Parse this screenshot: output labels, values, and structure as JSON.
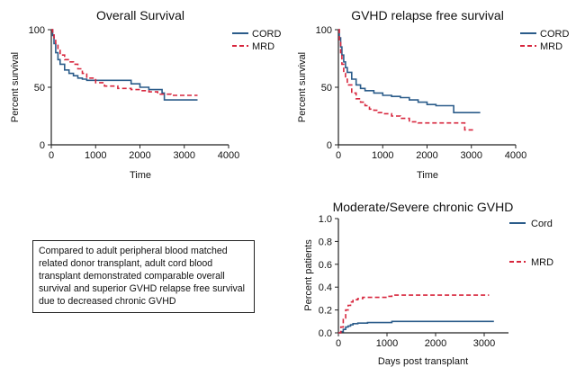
{
  "colors": {
    "blue": "#2b5c8a",
    "red": "#d7263d",
    "axis": "#222222"
  },
  "summary_text": "Compared to adult peripheral blood matched related donor transplant, adult cord blood transplant demonstrated comparable overall survival and superior GVHD relapse free survival due to decreased chronic GVHD",
  "chart_data": [
    {
      "type": "line",
      "title": "Overall Survival",
      "xlabel": "Time",
      "ylabel": "Percent survival",
      "xlim": [
        0,
        4000
      ],
      "ylim": [
        0,
        100
      ],
      "xticks": [
        0,
        1000,
        2000,
        3000,
        4000
      ],
      "yticks": [
        0,
        50,
        100
      ],
      "legend_position": "top-right",
      "series": [
        {
          "name": "CORD",
          "style": "solid",
          "color": "#2b5c8a",
          "x": [
            0,
            30,
            60,
            100,
            150,
            200,
            300,
            400,
            500,
            600,
            700,
            800,
            900,
            1000,
            1200,
            1500,
            1800,
            2000,
            2200,
            2500,
            2550,
            3000,
            3300
          ],
          "y": [
            100,
            95,
            88,
            80,
            74,
            70,
            65,
            62,
            60,
            58,
            57,
            56,
            56,
            56,
            56,
            56,
            53,
            50,
            48,
            45,
            39,
            39,
            39
          ]
        },
        {
          "name": "MRD",
          "style": "dashed",
          "color": "#d7263d",
          "x": [
            0,
            30,
            60,
            100,
            150,
            200,
            300,
            400,
            500,
            600,
            700,
            800,
            1000,
            1200,
            1500,
            1800,
            2000,
            2200,
            2400,
            2700,
            3000,
            3300
          ],
          "y": [
            100,
            97,
            93,
            87,
            82,
            78,
            74,
            72,
            70,
            66,
            62,
            58,
            54,
            51,
            49,
            48,
            47,
            46,
            44,
            43,
            43,
            43
          ]
        }
      ]
    },
    {
      "type": "line",
      "title": "GVHD relapse free survival",
      "xlabel": "Time",
      "ylabel": "Percent survival",
      "xlim": [
        0,
        4000
      ],
      "ylim": [
        0,
        100
      ],
      "xticks": [
        0,
        1000,
        2000,
        3000,
        4000
      ],
      "yticks": [
        0,
        50,
        100
      ],
      "legend_position": "top-right",
      "series": [
        {
          "name": "CORD",
          "style": "solid",
          "color": "#2b5c8a",
          "x": [
            0,
            20,
            50,
            80,
            120,
            160,
            200,
            300,
            400,
            500,
            600,
            800,
            1000,
            1200,
            1400,
            1600,
            1800,
            2000,
            2200,
            2500,
            2600,
            3000,
            3200
          ],
          "y": [
            100,
            93,
            85,
            78,
            72,
            67,
            63,
            57,
            52,
            49,
            47,
            45,
            43,
            42,
            41,
            39,
            37,
            35,
            34,
            34,
            28,
            28,
            28
          ]
        },
        {
          "name": "MRD",
          "style": "dashed",
          "color": "#d7263d",
          "x": [
            0,
            20,
            50,
            80,
            120,
            160,
            200,
            300,
            400,
            500,
            600,
            700,
            800,
            900,
            1000,
            1200,
            1400,
            1600,
            1800,
            2000,
            2400,
            2800,
            2850,
            3050
          ],
          "y": [
            100,
            90,
            80,
            70,
            62,
            57,
            52,
            45,
            40,
            37,
            34,
            31,
            30,
            28,
            27,
            25,
            23,
            20,
            19,
            19,
            19,
            19,
            13,
            13
          ]
        }
      ]
    },
    {
      "type": "line",
      "title": "Moderate/Severe chronic GVHD",
      "xlabel": "Days post transplant",
      "ylabel": "Percent patients",
      "xlim": [
        0,
        3500
      ],
      "ylim": [
        0,
        1.0
      ],
      "xticks": [
        0,
        1000,
        2000,
        3000
      ],
      "yticks": [
        0.0,
        0.2,
        0.4,
        0.6,
        0.8,
        1.0
      ],
      "legend_position": "top-right",
      "series": [
        {
          "name": "Cord",
          "style": "solid",
          "color": "#2b5c8a",
          "x": [
            0,
            50,
            100,
            150,
            200,
            250,
            300,
            400,
            600,
            800,
            1000,
            1100,
            2000,
            3000,
            3200
          ],
          "y": [
            0,
            0.01,
            0.03,
            0.05,
            0.06,
            0.07,
            0.08,
            0.085,
            0.09,
            0.09,
            0.09,
            0.1,
            0.1,
            0.1,
            0.1
          ]
        },
        {
          "name": "MRD",
          "style": "dashed",
          "color": "#d7263d",
          "x": [
            0,
            50,
            100,
            150,
            200,
            250,
            300,
            400,
            500,
            600,
            800,
            1000,
            1100,
            2000,
            3000,
            3100
          ],
          "y": [
            0,
            0.05,
            0.13,
            0.2,
            0.24,
            0.27,
            0.29,
            0.3,
            0.31,
            0.31,
            0.31,
            0.32,
            0.33,
            0.33,
            0.33,
            0.33
          ]
        }
      ]
    }
  ]
}
